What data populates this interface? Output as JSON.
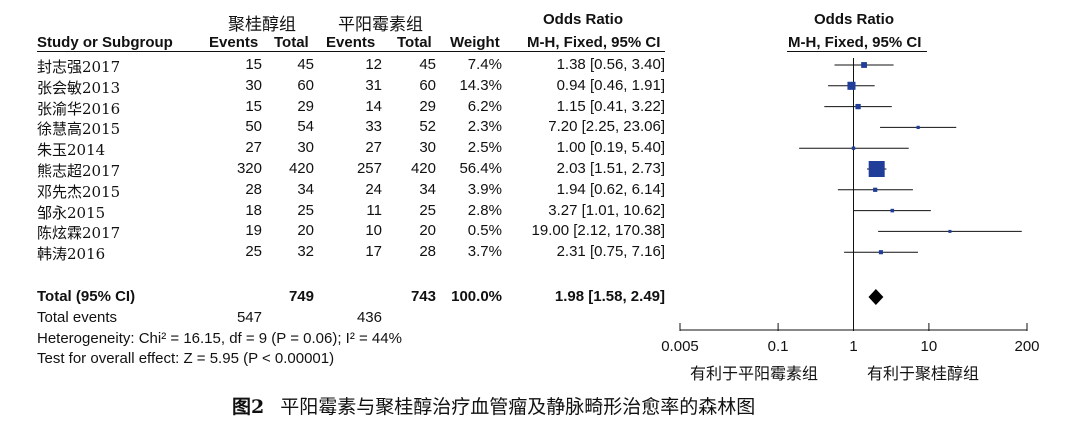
{
  "header": {
    "group_treatment": "聚桂醇组",
    "group_control": "平阳霉素组",
    "odds_ratio": "Odds Ratio",
    "study_or_subgroup": "Study or Subgroup",
    "events": "Events",
    "total": "Total",
    "weight": "Weight",
    "method": "M-H, Fixed, 95% CI"
  },
  "rows": [
    {
      "study": "封志强2017",
      "e1": "15",
      "t1": "45",
      "e2": "12",
      "t2": "45",
      "weight": "7.4%",
      "ci": "1.38 [0.56, 3.40]"
    },
    {
      "study": "张会敏2013",
      "e1": "30",
      "t1": "60",
      "e2": "31",
      "t2": "60",
      "weight": "14.3%",
      "ci": "0.94 [0.46, 1.91]"
    },
    {
      "study": "张渝华2016",
      "e1": "15",
      "t1": "29",
      "e2": "14",
      "t2": "29",
      "weight": "6.2%",
      "ci": "1.15 [0.41, 3.22]"
    },
    {
      "study": "徐慧高2015",
      "e1": "50",
      "t1": "54",
      "e2": "33",
      "t2": "52",
      "weight": "2.3%",
      "ci": "7.20 [2.25, 23.06]"
    },
    {
      "study": "朱玉2014",
      "e1": "27",
      "t1": "30",
      "e2": "27",
      "t2": "30",
      "weight": "2.5%",
      "ci": "1.00 [0.19, 5.40]"
    },
    {
      "study": "熊志超2017",
      "e1": "320",
      "t1": "420",
      "e2": "257",
      "t2": "420",
      "weight": "56.4%",
      "ci": "2.03 [1.51, 2.73]"
    },
    {
      "study": "邓先杰2015",
      "e1": "28",
      "t1": "34",
      "e2": "24",
      "t2": "34",
      "weight": "3.9%",
      "ci": "1.94 [0.62, 6.14]"
    },
    {
      "study": "邹永2015",
      "e1": "18",
      "t1": "25",
      "e2": "11",
      "t2": "25",
      "weight": "2.8%",
      "ci": "3.27 [1.01, 10.62]"
    },
    {
      "study": "陈炫霖2017",
      "e1": "19",
      "t1": "20",
      "e2": "10",
      "t2": "20",
      "weight": "0.5%",
      "ci": "19.00 [2.12, 170.38]"
    },
    {
      "study": "韩涛2016",
      "e1": "25",
      "t1": "32",
      "e2": "17",
      "t2": "28",
      "weight": "3.7%",
      "ci": "2.31 [0.75, 7.16]"
    }
  ],
  "total": {
    "label": "Total (95% CI)",
    "t1": "749",
    "t2": "743",
    "weight": "100.0%",
    "ci": "1.98 [1.58, 2.49]"
  },
  "total_events": {
    "label": "Total events",
    "e1": "547",
    "e2": "436"
  },
  "heterogeneity": "Heterogeneity: Chi² = 16.15, df = 9 (P = 0.06); I² = 44%",
  "overall_effect": "Test for overall effect: Z = 5.95 (P < 0.00001)",
  "axis": {
    "favours_left": "有利于平阳霉素组",
    "favours_right": "有利于聚桂醇组"
  },
  "caption": {
    "label": "图2",
    "text": "平阳霉素与聚桂醇治疗血管瘤及静脉畸形治愈率的森林图"
  },
  "colors": {
    "square": "#1f3d99",
    "line": "#111111"
  },
  "chart_data": {
    "type": "forest",
    "title": "Odds Ratio",
    "subtitle": "M-H, Fixed, 95% CI",
    "scale": "log",
    "xlim": [
      0.005,
      200
    ],
    "ticks": [
      0.005,
      0.1,
      1,
      10,
      200
    ],
    "tick_labels": [
      "0.005",
      "0.1",
      "1",
      "10",
      "200"
    ],
    "studies": [
      {
        "name": "封志强2017",
        "or": 1.38,
        "lo": 0.56,
        "hi": 3.4,
        "weight": 7.4
      },
      {
        "name": "张会敏2013",
        "or": 0.94,
        "lo": 0.46,
        "hi": 1.91,
        "weight": 14.3
      },
      {
        "name": "张渝华2016",
        "or": 1.15,
        "lo": 0.41,
        "hi": 3.22,
        "weight": 6.2
      },
      {
        "name": "徐慧高2015",
        "or": 7.2,
        "lo": 2.25,
        "hi": 23.06,
        "weight": 2.3
      },
      {
        "name": "朱玉2014",
        "or": 1.0,
        "lo": 0.19,
        "hi": 5.4,
        "weight": 2.5
      },
      {
        "name": "熊志超2017",
        "or": 2.03,
        "lo": 1.51,
        "hi": 2.73,
        "weight": 56.4
      },
      {
        "name": "邓先杰2015",
        "or": 1.94,
        "lo": 0.62,
        "hi": 6.14,
        "weight": 3.9
      },
      {
        "name": "邹永2015",
        "or": 3.27,
        "lo": 1.01,
        "hi": 10.62,
        "weight": 2.8
      },
      {
        "name": "陈炫霖2017",
        "or": 19.0,
        "lo": 2.12,
        "hi": 170.38,
        "weight": 0.5
      },
      {
        "name": "韩涛2016",
        "or": 2.31,
        "lo": 0.75,
        "hi": 7.16,
        "weight": 3.7
      }
    ],
    "pooled": {
      "or": 1.98,
      "lo": 1.58,
      "hi": 2.49
    }
  }
}
